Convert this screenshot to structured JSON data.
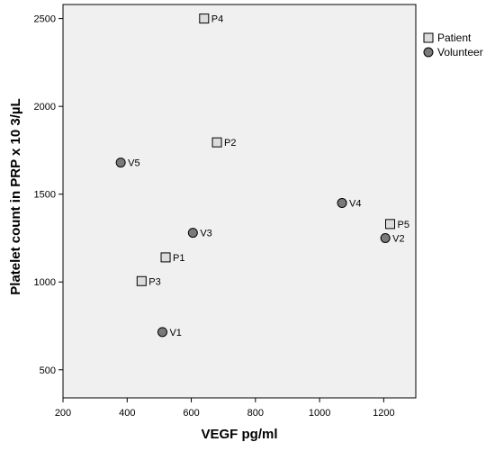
{
  "chart_data": {
    "type": "scatter",
    "xlabel": "VEGF pg/ml",
    "ylabel": "Platelet count in PRP x 10 3/µL",
    "xlim": [
      200,
      1300
    ],
    "ylim": [
      340,
      2580
    ],
    "xticks": [
      200,
      400,
      600,
      800,
      1000,
      1200
    ],
    "yticks": [
      500,
      1000,
      1500,
      2000,
      2500
    ],
    "grid": false,
    "legend_position": "top-right-outside",
    "plot_background": "#f0f0f0",
    "series": [
      {
        "name": "Patient",
        "marker": "square",
        "color": "#dcdcdc",
        "points": [
          {
            "label": "P1",
            "x": 520,
            "y": 1140
          },
          {
            "label": "P2",
            "x": 680,
            "y": 1795
          },
          {
            "label": "P3",
            "x": 445,
            "y": 1005
          },
          {
            "label": "P4",
            "x": 640,
            "y": 2500
          },
          {
            "label": "P5",
            "x": 1220,
            "y": 1330
          }
        ]
      },
      {
        "name": "Volunteer",
        "marker": "circle",
        "color": "#7a7a7a",
        "points": [
          {
            "label": "V1",
            "x": 510,
            "y": 715
          },
          {
            "label": "V2",
            "x": 1205,
            "y": 1250
          },
          {
            "label": "V3",
            "x": 605,
            "y": 1280
          },
          {
            "label": "V4",
            "x": 1070,
            "y": 1450
          },
          {
            "label": "V5",
            "x": 380,
            "y": 1680
          }
        ]
      }
    ]
  }
}
